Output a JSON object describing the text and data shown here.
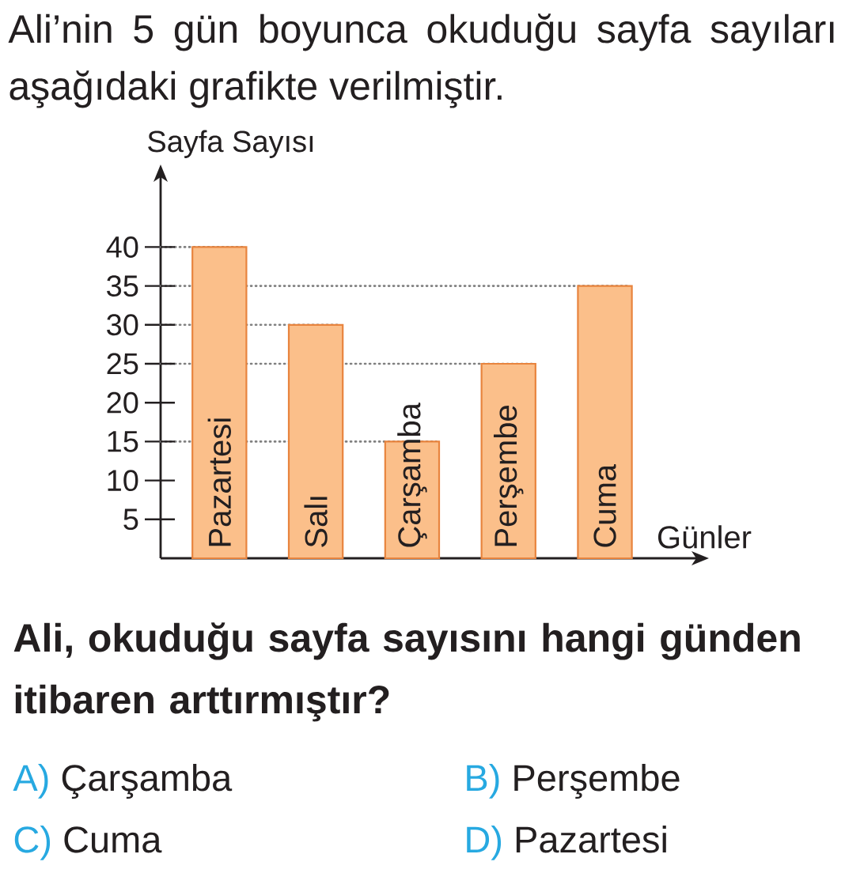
{
  "chart_data": {
    "type": "bar",
    "title": "Ali’nin 5 gün boyunca okuduğu sayfa sayıları aşağıdaki grafikte verilmiştir.",
    "xlabel": "Günler",
    "ylabel": "Sayfa Sayısı",
    "categories": [
      "Pazartesi",
      "Salı",
      "Çarşamba",
      "Perşembe",
      "Cuma"
    ],
    "values": [
      40,
      30,
      15,
      25,
      35
    ],
    "color": "#fbbf8a",
    "ylim": [
      0,
      50
    ],
    "yticks": [
      5,
      10,
      15,
      20,
      25,
      30,
      35,
      40
    ],
    "ref_lines": [
      {
        "axis": "y",
        "value": 40,
        "line_style": "dotted",
        "color": "#808080"
      },
      {
        "axis": "y",
        "value": 35,
        "line_style": "dotted",
        "color": "#808080"
      },
      {
        "axis": "y",
        "value": 30,
        "line_style": "dotted",
        "color": "#808080"
      },
      {
        "axis": "y",
        "value": 25,
        "line_style": "dotted",
        "color": "#808080"
      },
      {
        "axis": "y",
        "value": 15,
        "line_style": "dotted",
        "color": "#808080"
      }
    ],
    "annotations": [
      "Ali, okuduğu sayfa sayısını hangi günden itibaren arttırmıştır?",
      "A)",
      "Çarşamba",
      "B)",
      "Perşembe",
      "C)",
      "Cuma",
      "D)",
      "Pazartesi"
    ]
  }
}
